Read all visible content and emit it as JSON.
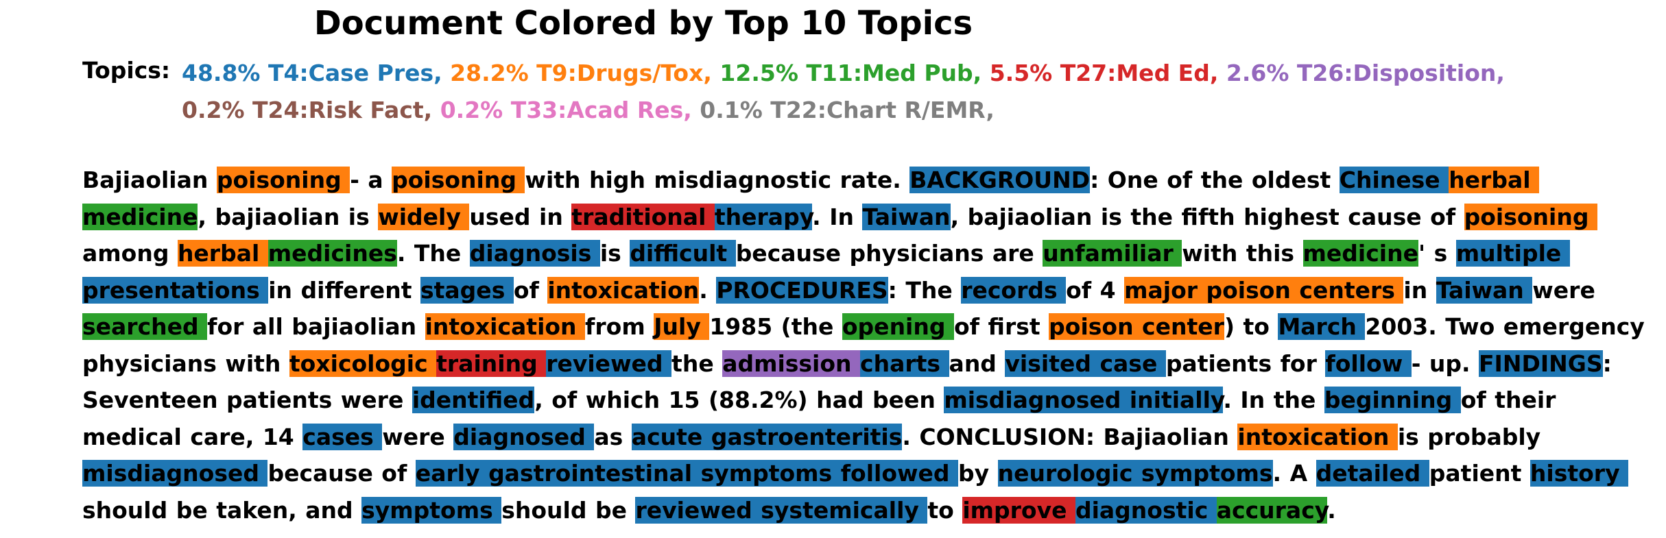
{
  "title": "Document Colored by Top 10 Topics",
  "topics_label": "Topics:",
  "topics": [
    {
      "text": "48.8% T4:Case Pres,",
      "color": "#1f77b4"
    },
    {
      "text": "28.2% T9:Drugs/Tox,",
      "color": "#ff7f0e"
    },
    {
      "text": "12.5% T11:Med Pub,",
      "color": "#2ca02c"
    },
    {
      "text": "5.5% T27:Med Ed,",
      "color": "#d62728"
    },
    {
      "text": "2.6% T26:Disposition,",
      "color": "#9467bd"
    },
    {
      "text": "0.2% T24:Risk Fact,",
      "color": "#8c564b"
    },
    {
      "text": "0.2% T33:Acad Res,",
      "color": "#e377c2"
    },
    {
      "text": "0.1% T22:Chart R/EMR,",
      "color": "#7f7f7f"
    }
  ],
  "topic_colors": {
    "T4": "#1f77b4",
    "T9": "#ff7f0e",
    "T11": "#2ca02c",
    "T27": "#d62728",
    "T26": "#9467bd"
  },
  "tokens": [
    [
      "Bajiaolian ",
      null
    ],
    [
      "poisoning ",
      "T9"
    ],
    [
      "- a ",
      null
    ],
    [
      "poisoning ",
      "T9"
    ],
    [
      "with high misdiagnostic rate. ",
      null
    ],
    [
      "BACKGROUND",
      "T4"
    ],
    [
      ": One of the oldest ",
      null
    ],
    [
      "Chinese ",
      "T4"
    ],
    [
      "herbal ",
      "T9"
    ],
    [
      "medicine",
      "T11"
    ],
    [
      ", bajiaolian is ",
      null
    ],
    [
      "widely ",
      "T9"
    ],
    [
      "used in ",
      null
    ],
    [
      "traditional ",
      "T27"
    ],
    [
      "therapy",
      "T4"
    ],
    [
      ". In ",
      null
    ],
    [
      "Taiwan",
      "T4"
    ],
    [
      ", bajiaolian is the fifth highest cause of ",
      null
    ],
    [
      "poisoning ",
      "T9"
    ],
    [
      "among ",
      null
    ],
    [
      "herbal ",
      "T9"
    ],
    [
      "medicines",
      "T11"
    ],
    [
      ". The ",
      null
    ],
    [
      "diagnosis ",
      "T4"
    ],
    [
      "is ",
      null
    ],
    [
      "difficult ",
      "T4"
    ],
    [
      "because physicians are ",
      null
    ],
    [
      "unfamiliar ",
      "T11"
    ],
    [
      "with this ",
      null
    ],
    [
      "medicine",
      "T11"
    ],
    [
      "' s ",
      null
    ],
    [
      "multiple presentations ",
      "T4"
    ],
    [
      "in different ",
      null
    ],
    [
      "stages ",
      "T4"
    ],
    [
      "of ",
      null
    ],
    [
      "intoxication",
      "T9"
    ],
    [
      ". ",
      null
    ],
    [
      "PROCEDURES",
      "T4"
    ],
    [
      ": The ",
      null
    ],
    [
      "records ",
      "T4"
    ],
    [
      "of 4 ",
      null
    ],
    [
      "major poison centers ",
      "T9"
    ],
    [
      "in ",
      null
    ],
    [
      "Taiwan ",
      "T4"
    ],
    [
      "were ",
      null
    ],
    [
      "searched ",
      "T11"
    ],
    [
      "for all bajiaolian ",
      null
    ],
    [
      "intoxication ",
      "T9"
    ],
    [
      "from ",
      null
    ],
    [
      "July ",
      "T9"
    ],
    [
      "1985 (the ",
      null
    ],
    [
      "opening ",
      "T11"
    ],
    [
      "of first ",
      null
    ],
    [
      "poison center",
      "T9"
    ],
    [
      ") to ",
      null
    ],
    [
      "March ",
      "T4"
    ],
    [
      "2003. Two emergency physicians with ",
      null
    ],
    [
      "toxicologic ",
      "T9"
    ],
    [
      "training ",
      "T27"
    ],
    [
      "reviewed ",
      "T4"
    ],
    [
      "the ",
      null
    ],
    [
      "admission ",
      "T26"
    ],
    [
      "charts ",
      "T4"
    ],
    [
      "and ",
      null
    ],
    [
      "visited case ",
      "T4"
    ],
    [
      "patients for ",
      null
    ],
    [
      "follow ",
      "T4"
    ],
    [
      "- up. ",
      null
    ],
    [
      "FINDINGS",
      "T4"
    ],
    [
      ": Seventeen patients were ",
      null
    ],
    [
      "identified",
      "T4"
    ],
    [
      ", of which 15 (88.2%) had been ",
      null
    ],
    [
      "misdiagnosed initially",
      "T4"
    ],
    [
      ". In ",
      null
    ],
    [
      "the ",
      null
    ],
    [
      "beginning ",
      "T4"
    ],
    [
      "of their medical care, 14 ",
      null
    ],
    [
      "cases ",
      "T4"
    ],
    [
      "were ",
      null
    ],
    [
      "diagnosed ",
      "T4"
    ],
    [
      "as ",
      null
    ],
    [
      "acute gastroenteritis",
      "T4"
    ],
    [
      ". CONCLUSION: Bajiaolian ",
      null
    ],
    [
      "intoxication ",
      "T9"
    ],
    [
      "is probably ",
      null
    ],
    [
      "misdiagnosed ",
      "T4"
    ],
    [
      "because of ",
      null
    ],
    [
      "early gastrointestinal symptoms followed ",
      "T4"
    ],
    [
      "by ",
      null
    ],
    [
      "neurologic symptoms",
      "T4"
    ],
    [
      ". A ",
      null
    ],
    [
      "detailed ",
      "T4"
    ],
    [
      "patient ",
      null
    ],
    [
      "history ",
      "T4"
    ],
    [
      "should be taken, and ",
      null
    ],
    [
      "symptoms ",
      "T4"
    ],
    [
      "should be ",
      null
    ],
    [
      "reviewed systemically ",
      "T4"
    ],
    [
      "to ",
      null
    ],
    [
      "improve ",
      "T27"
    ],
    [
      "diagnostic ",
      "T4"
    ],
    [
      "accuracy",
      "T11"
    ],
    [
      ".",
      null
    ]
  ]
}
